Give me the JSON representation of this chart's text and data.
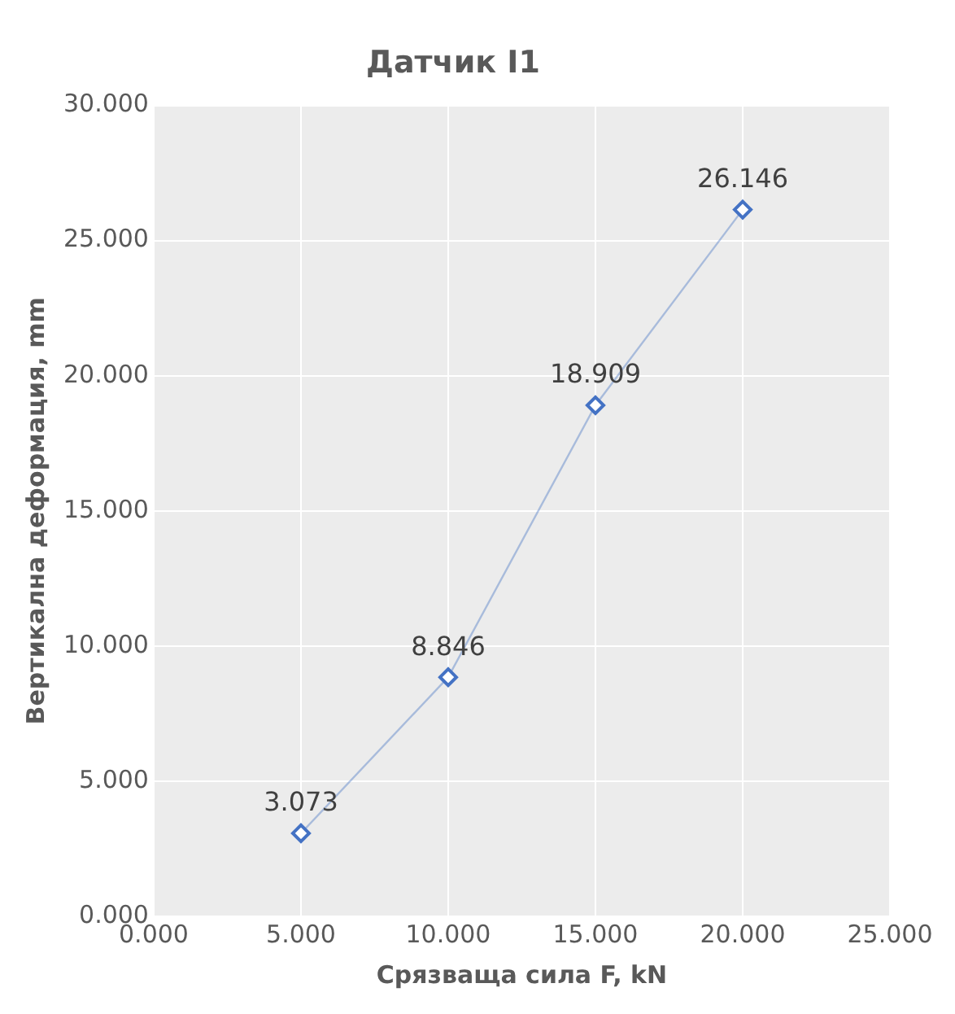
{
  "chart_data": {
    "type": "line",
    "title": "Датчик I1",
    "xlabel": "Срязваща сила F, kN",
    "ylabel": "Вертикална деформация, mm",
    "x": [
      5,
      10,
      15,
      20
    ],
    "series": [
      {
        "color": "#4472c4",
        "values": [
          3.073,
          8.846,
          18.909,
          26.146
        ]
      }
    ],
    "xlim": [
      0,
      25
    ],
    "xticks": [
      {
        "value": 0,
        "label": "0.000"
      },
      {
        "value": 5,
        "label": "5.000"
      },
      {
        "value": 10,
        "label": "10.000"
      },
      {
        "value": 15,
        "label": "15.000"
      },
      {
        "value": 20,
        "label": "20.000"
      },
      {
        "value": 25,
        "label": "25.000"
      }
    ],
    "ylim": [
      0,
      30
    ],
    "yticks": [
      {
        "value": 0,
        "label": "0.000"
      },
      {
        "value": 5,
        "label": "5.000"
      },
      {
        "value": 10,
        "label": "10.000"
      },
      {
        "value": 15,
        "label": "15.000"
      },
      {
        "value": 20,
        "label": "20.000"
      },
      {
        "value": 25,
        "label": "25.000"
      },
      {
        "value": 30,
        "label": "30.000"
      }
    ],
    "grid": true,
    "legend": false,
    "marker": "diamond",
    "line_style": "solid",
    "data_labels": true
  }
}
